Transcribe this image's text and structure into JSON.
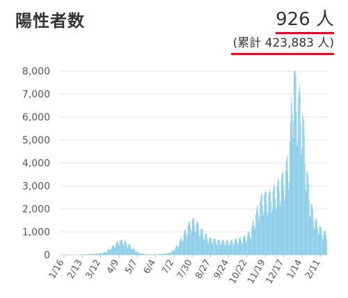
{
  "header": {
    "title": "陽性者数",
    "latest": "926 人",
    "cumulative": "(累計 423,883 人)"
  },
  "colors": {
    "bar": "#7cc8e6",
    "grid": "#e6e6e6",
    "underline": "#e0111b"
  },
  "chart_data": {
    "type": "bar",
    "title": "陽性者数",
    "xlabel": "",
    "ylabel": "",
    "ylim": [
      0,
      8000
    ],
    "y_ticks": [
      "0",
      "1,000",
      "2,000",
      "3,000",
      "4,000",
      "5,000",
      "6,000",
      "7,000",
      "8,000"
    ],
    "x_ticks": [
      "1/16",
      "2/13",
      "3/12",
      "4/9",
      "5/7",
      "6/4",
      "7/2",
      "7/30",
      "8/27",
      "9/24",
      "10/22",
      "11/19",
      "12/17",
      "1/14",
      "2/11"
    ],
    "grid": true,
    "weekly_x": [
      "1/16",
      "2/13",
      "3/12",
      "4/9",
      "5/7",
      "6/4",
      "7/2",
      "7/30",
      "8/27",
      "9/24",
      "10/22",
      "11/19",
      "12/17",
      "1/14",
      "2/11"
    ],
    "series": [
      {
        "values": [
          0,
          0,
          0,
          0,
          5,
          10,
          20,
          30,
          40,
          60,
          80,
          150,
          300,
          450,
          600,
          550,
          450,
          300,
          150,
          60,
          30,
          15,
          10,
          20,
          40,
          60,
          100,
          250,
          500,
          800,
          1150,
          1450,
          1400,
          1100,
          900,
          700,
          650,
          600,
          580,
          570,
          560,
          600,
          650,
          700,
          800,
          1000,
          1600,
          2200,
          2500,
          2450,
          2600,
          2800,
          3100,
          3400,
          4200,
          7800,
          6600,
          6200,
          3700,
          2200,
          1500,
          1200,
          926
        ]
      }
    ]
  }
}
